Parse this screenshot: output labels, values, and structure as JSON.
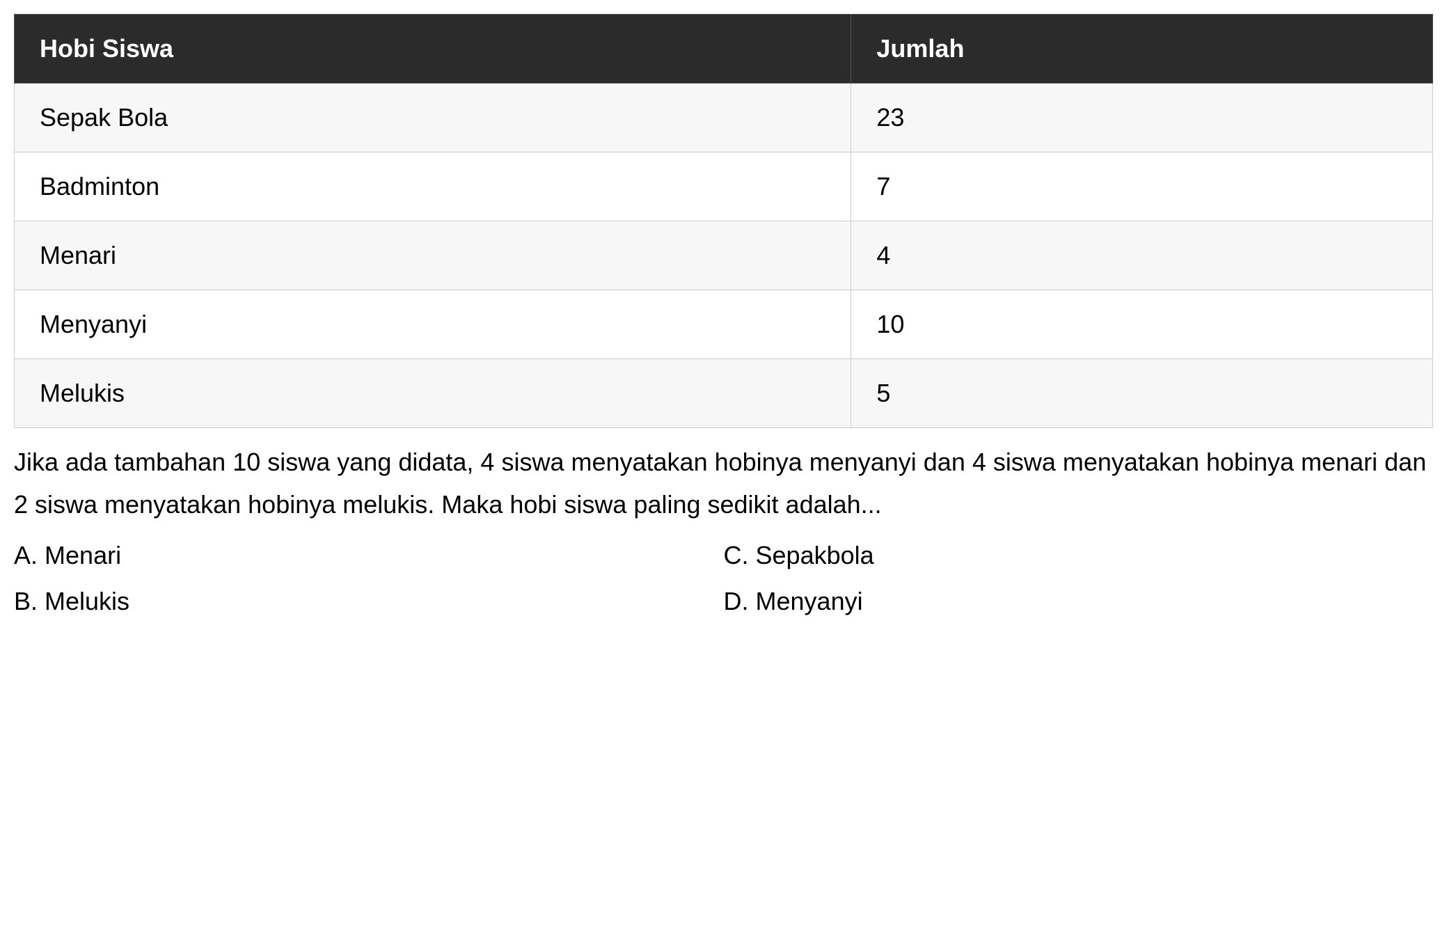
{
  "table": {
    "header_bg": "#2b2b2b",
    "header_text_color": "#ffffff",
    "border_color": "#cccccc",
    "row_odd_bg": "#f7f7f7",
    "row_even_bg": "#ffffff",
    "font_size_pt": 27,
    "columns": [
      {
        "label": "Hobi Siswa",
        "width_pct": 59
      },
      {
        "label": "Jumlah",
        "width_pct": 41
      }
    ],
    "rows": [
      {
        "hobby": "Sepak Bola",
        "count": "23"
      },
      {
        "hobby": "Badminton",
        "count": "7"
      },
      {
        "hobby": "Menari",
        "count": "4"
      },
      {
        "hobby": "Menyanyi",
        "count": "10"
      },
      {
        "hobby": "Melukis",
        "count": "5"
      }
    ]
  },
  "question": {
    "text": "Jika ada tambahan 10 siswa yang didata, 4 siswa menyatakan hobinya menyanyi dan 4 siswa menyatakan hobinya menari dan 2 siswa menyatakan hobinya melukis. Maka hobi siswa paling sedikit adalah...",
    "font_size_pt": 27,
    "text_color": "#000000"
  },
  "options": {
    "left": [
      {
        "letter": "A.",
        "text": "Menari"
      },
      {
        "letter": "B.",
        "text": "Melukis"
      }
    ],
    "right": [
      {
        "letter": "C.",
        "text": "Sepakbola"
      },
      {
        "letter": "D.",
        "text": "Menyanyi"
      }
    ]
  }
}
